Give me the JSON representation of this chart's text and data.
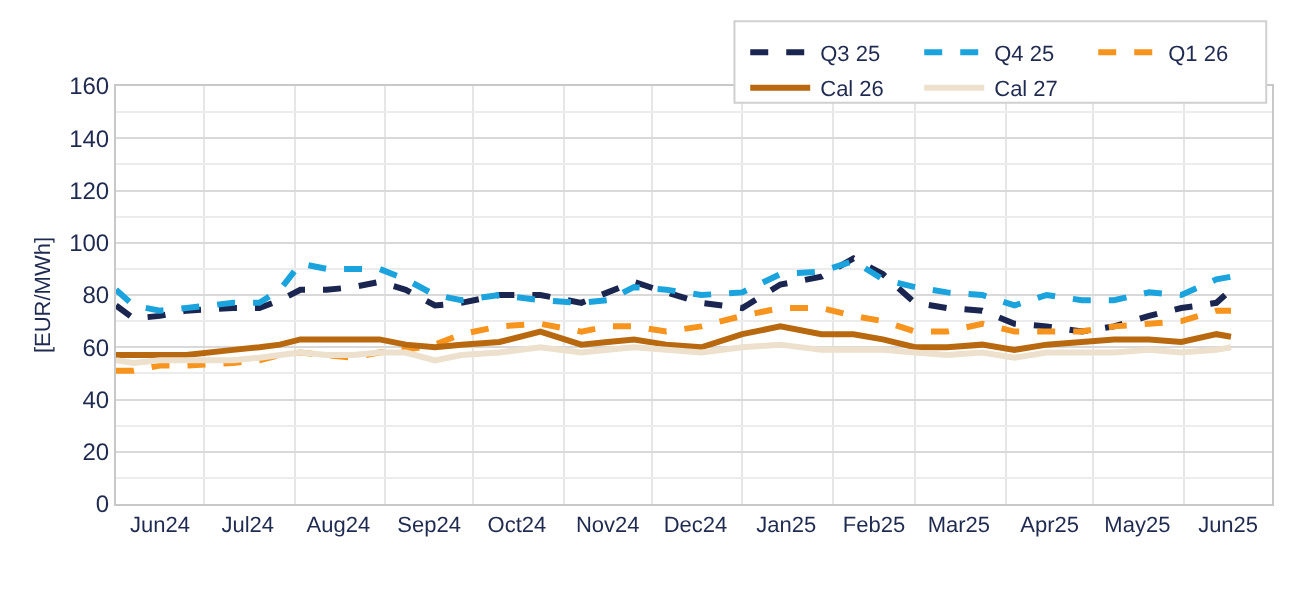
{
  "chart_data": {
    "type": "line",
    "ylabel": "[EUR/MWh]",
    "x": [
      "2024-06-01",
      "2024-06-07",
      "2024-06-16",
      "2024-06-25",
      "2024-07-11",
      "2024-07-20",
      "2024-07-27",
      "2024-08-03",
      "2024-08-12",
      "2024-08-21",
      "2024-08-30",
      "2024-09-08",
      "2024-09-18",
      "2024-09-27",
      "2024-10-10",
      "2024-10-24",
      "2024-11-07",
      "2024-11-16",
      "2024-11-25",
      "2024-12-06",
      "2024-12-18",
      "2025-01-01",
      "2025-01-14",
      "2025-01-28",
      "2025-02-08",
      "2025-02-18",
      "2025-03-01",
      "2025-03-12",
      "2025-03-24",
      "2025-04-04",
      "2025-04-15",
      "2025-04-27",
      "2025-05-08",
      "2025-05-20",
      "2025-05-31",
      "2025-06-12",
      "2025-06-17"
    ],
    "series": [
      {
        "name": "Q3 25",
        "color": "#1a2650",
        "line_style": "dashed",
        "values": [
          76,
          71,
          72,
          74,
          75,
          75,
          78,
          82,
          82,
          83,
          85,
          82,
          76,
          77,
          80,
          80,
          77,
          81,
          85,
          81,
          77,
          75,
          84,
          87,
          94,
          88,
          77,
          75,
          74,
          69,
          68,
          66,
          68,
          72,
          75,
          77,
          82
        ]
      },
      {
        "name": "Q4 25",
        "color": "#1aa3dc",
        "line_style": "dashed",
        "values": [
          82,
          76,
          74,
          75,
          77,
          77,
          82,
          92,
          90,
          90,
          90,
          86,
          80,
          78,
          80,
          78,
          77,
          78,
          83,
          82,
          80,
          81,
          88,
          89,
          93,
          86,
          83,
          81,
          80,
          76,
          80,
          78,
          78,
          81,
          80,
          86,
          87
        ]
      },
      {
        "name": "Q1 26",
        "color": "#f7941d",
        "line_style": "dashed",
        "values": [
          51,
          51,
          53,
          53,
          54,
          55,
          57,
          58,
          57,
          56,
          58,
          59,
          61,
          65,
          68,
          69,
          66,
          68,
          68,
          66,
          68,
          72,
          75,
          75,
          72,
          70,
          66,
          66,
          69,
          66,
          66,
          66,
          68,
          69,
          70,
          74,
          74
        ]
      },
      {
        "name": "Cal 26",
        "color": "#b8690f",
        "line_style": "solid",
        "values": [
          57,
          57,
          57,
          57,
          59,
          60,
          61,
          63,
          63,
          63,
          63,
          61,
          60,
          61,
          62,
          66,
          61,
          62,
          63,
          61,
          60,
          65,
          68,
          65,
          65,
          63,
          60,
          60,
          61,
          59,
          61,
          62,
          63,
          63,
          62,
          65,
          64
        ]
      },
      {
        "name": "Cal 27",
        "color": "#ede0cc",
        "line_style": "solid",
        "values": [
          55,
          54,
          55,
          55,
          55,
          56,
          57,
          58,
          57,
          57,
          58,
          58,
          55,
          57,
          58,
          60,
          58,
          59,
          60,
          59,
          58,
          60,
          61,
          59,
          59,
          59,
          58,
          57,
          58,
          56,
          58,
          58,
          58,
          59,
          58,
          59,
          60
        ]
      }
    ],
    "xlim": [
      "2024-06-01",
      "2025-07-01"
    ],
    "xticks": [
      {
        "value": "2024-06-01",
        "label": null
      },
      {
        "value": "2024-07-01",
        "label": null
      },
      {
        "value": "2024-08-01",
        "label": null
      },
      {
        "value": "2024-09-01",
        "label": null
      },
      {
        "value": "2024-10-01",
        "label": null
      },
      {
        "value": "2024-11-01",
        "label": null
      },
      {
        "value": "2024-12-01",
        "label": null
      },
      {
        "value": "2025-01-01",
        "label": null
      },
      {
        "value": "2025-02-01",
        "label": null
      },
      {
        "value": "2025-03-01",
        "label": null
      },
      {
        "value": "2025-04-01",
        "label": null
      },
      {
        "value": "2025-05-01",
        "label": null
      },
      {
        "value": "2025-06-01",
        "label": null
      },
      {
        "value": "2025-07-01",
        "label": null
      },
      {
        "value": "2024-06-16",
        "label": "Jun24"
      },
      {
        "value": "2024-07-16",
        "label": "Jul24"
      },
      {
        "value": "2024-08-16",
        "label": "Aug24"
      },
      {
        "value": "2024-09-16",
        "label": "Sep24"
      },
      {
        "value": "2024-10-16",
        "label": "Oct24"
      },
      {
        "value": "2024-11-16",
        "label": "Nov24"
      },
      {
        "value": "2024-12-16",
        "label": "Dec24"
      },
      {
        "value": "2025-01-16",
        "label": "Jan25"
      },
      {
        "value": "2025-02-15",
        "label": "Feb25"
      },
      {
        "value": "2025-03-16",
        "label": "Mar25"
      },
      {
        "value": "2025-04-16",
        "label": "Apr25"
      },
      {
        "value": "2025-05-16",
        "label": "May25"
      },
      {
        "value": "2025-06-16",
        "label": "Jun25"
      }
    ],
    "ylim": [
      0,
      160
    ],
    "yticks": [
      0,
      {
        "value": 10,
        "label": null
      },
      20,
      {
        "value": 30,
        "label": null
      },
      40,
      {
        "value": 50,
        "label": null
      },
      60,
      {
        "value": 70,
        "label": null
      },
      80,
      {
        "value": 90,
        "label": null
      },
      100,
      {
        "value": 110,
        "label": null
      },
      120,
      {
        "value": 130,
        "label": null
      },
      140,
      {
        "value": 150,
        "label": null
      },
      160
    ],
    "grid": true,
    "legend": "top right",
    "marker": "none"
  }
}
